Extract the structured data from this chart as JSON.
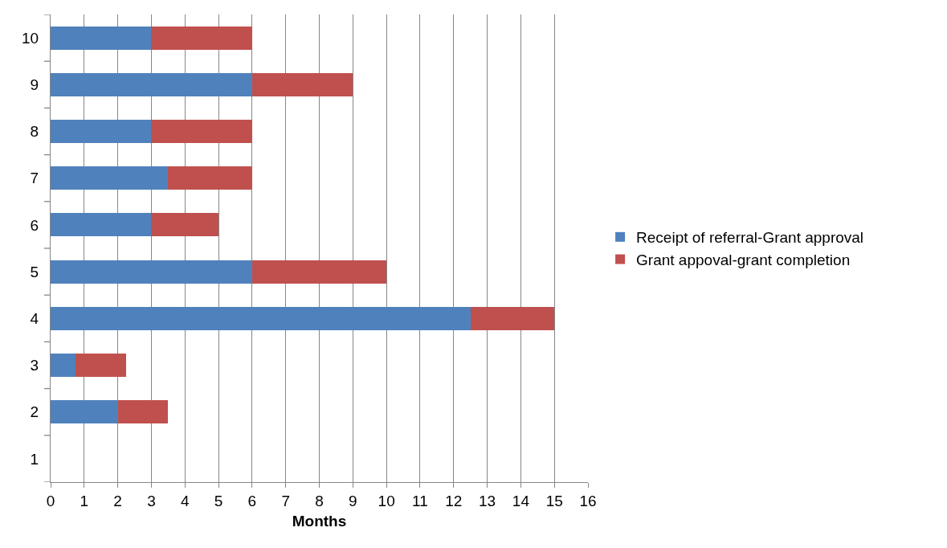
{
  "chart_data": {
    "type": "bar",
    "orientation": "horizontal",
    "stacked": true,
    "xlabel": "Months",
    "categories": [
      "10",
      "9",
      "8",
      "7",
      "6",
      "5",
      "4",
      "3",
      "2",
      "1"
    ],
    "series": [
      {
        "name": "Receipt of referral-Grant approval",
        "color": "#4f81bd",
        "values": [
          3,
          6,
          3,
          3.5,
          3,
          6,
          12.5,
          0.75,
          2,
          null
        ]
      },
      {
        "name": "Grant appoval-grant completion",
        "color": "#c0504d",
        "values": [
          3,
          3,
          3,
          2.5,
          2,
          4,
          2.5,
          1.5,
          1.5,
          null
        ]
      }
    ],
    "xlim": [
      0,
      16
    ],
    "xticks": [
      0,
      1,
      2,
      3,
      4,
      5,
      6,
      7,
      8,
      9,
      10,
      11,
      12,
      13,
      14,
      15,
      16
    ],
    "grid": "x",
    "legend": "right"
  }
}
